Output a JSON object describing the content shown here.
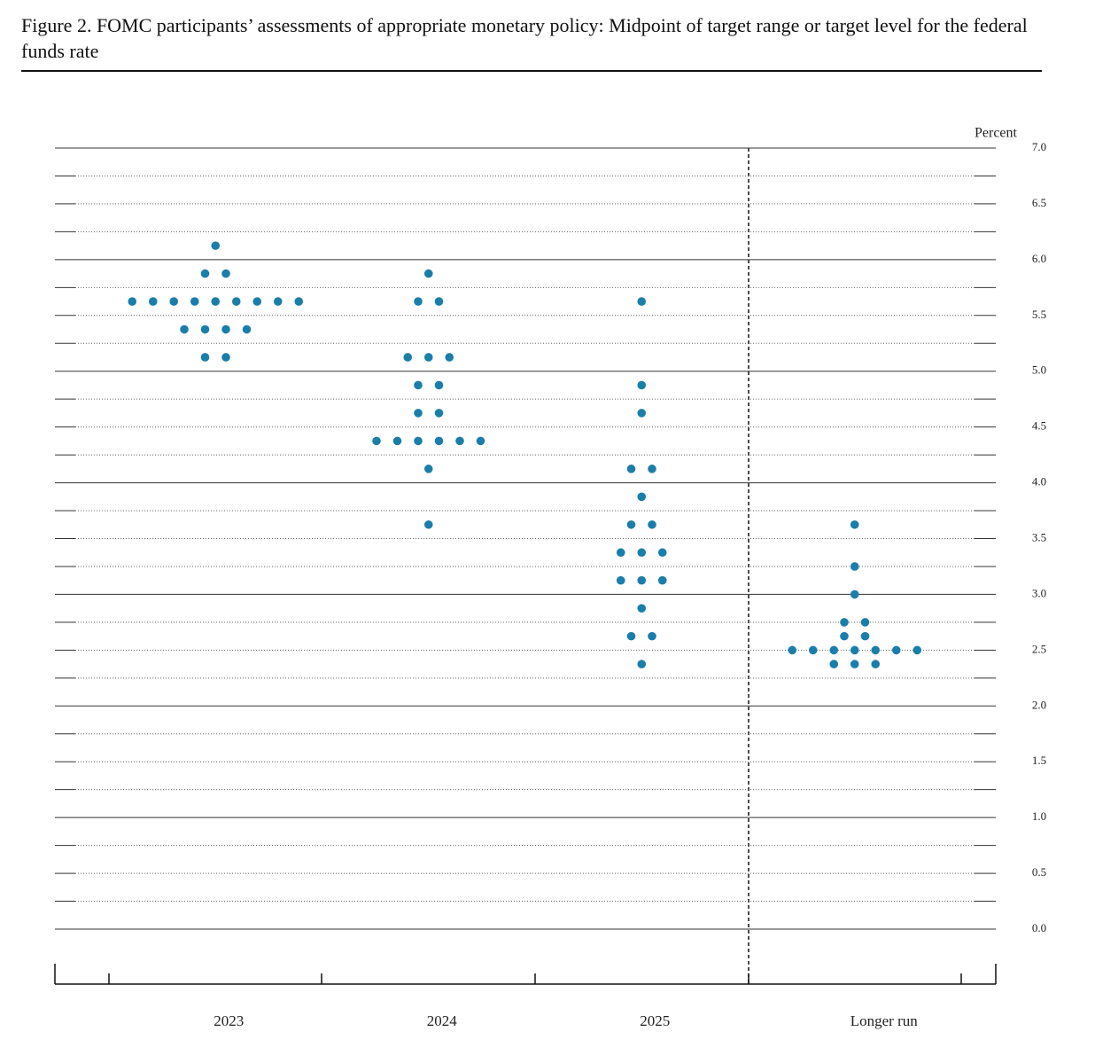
{
  "chart_data": {
    "type": "dot",
    "title": "Figure 2.  FOMC participants’ assessments of appropriate monetary policy: Midpoint of target range or target level for the federal funds rate",
    "y_label": "Percent",
    "color": "#1b7eaa",
    "categories": [
      "2023",
      "2024",
      "2025",
      "Longer run"
    ],
    "values": [
      [
        6.125,
        5.875,
        5.875,
        5.625,
        5.625,
        5.625,
        5.625,
        5.625,
        5.625,
        5.625,
        5.625,
        5.625,
        5.375,
        5.375,
        5.375,
        5.375,
        5.125,
        5.125
      ],
      [
        5.875,
        5.625,
        5.625,
        5.125,
        5.125,
        5.125,
        4.875,
        4.875,
        4.625,
        4.625,
        4.375,
        4.375,
        4.375,
        4.375,
        4.375,
        4.375,
        4.125,
        3.625
      ],
      [
        5.625,
        4.875,
        4.625,
        4.125,
        4.125,
        3.875,
        3.625,
        3.625,
        3.375,
        3.375,
        3.375,
        3.125,
        3.125,
        3.125,
        2.875,
        2.625,
        2.625,
        2.375
      ],
      [
        3.625,
        3.25,
        3.0,
        2.75,
        2.75,
        2.625,
        2.625,
        2.5,
        2.5,
        2.5,
        2.5,
        2.5,
        2.5,
        2.5,
        2.375,
        2.375,
        2.375
      ]
    ],
    "ylim": [
      0,
      7
    ],
    "yticks": [
      {
        "value": 0,
        "label": "0.0"
      },
      {
        "value": 0.5,
        "label": "0.5"
      },
      {
        "value": 1,
        "label": "1.0"
      },
      {
        "value": 1.5,
        "label": "1.5"
      },
      {
        "value": 2,
        "label": "2.0"
      },
      {
        "value": 2.5,
        "label": "2.5"
      },
      {
        "value": 3,
        "label": "3.0"
      },
      {
        "value": 3.5,
        "label": "3.5"
      },
      {
        "value": 4,
        "label": "4.0"
      },
      {
        "value": 4.5,
        "label": "4.5"
      },
      {
        "value": 5,
        "label": "5.0"
      },
      {
        "value": 5.5,
        "label": "5.5"
      },
      {
        "value": 6,
        "label": "6.0"
      },
      {
        "value": 6.5,
        "label": "6.5"
      },
      {
        "value": 7,
        "label": "7.0"
      }
    ],
    "yminorticks": [
      0.25,
      0.75,
      1.25,
      1.75,
      2.25,
      2.75,
      3.25,
      3.75,
      4.25,
      4.75,
      5.25,
      5.75,
      6.25,
      6.75
    ],
    "grid": true
  }
}
